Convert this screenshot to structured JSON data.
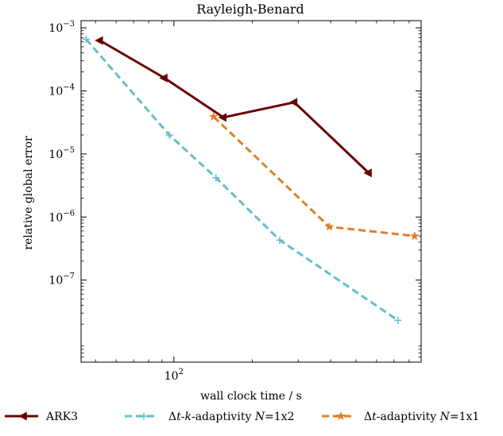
{
  "chart_data": {
    "type": "line",
    "title": "Rayleigh-Benard",
    "xlabel": "wall clock time / s",
    "ylabel": "relative global error",
    "xscale": "log",
    "yscale": "log",
    "xlim": [
      44,
      890
    ],
    "ylim": [
      5e-09,
      0.0013
    ],
    "x_ticks": [
      {
        "value": 100,
        "base": "10",
        "exp": "2"
      }
    ],
    "y_ticks": [
      {
        "value": 0.001,
        "base": "10",
        "exp": "−3"
      },
      {
        "value": 0.0001,
        "base": "10",
        "exp": "−4"
      },
      {
        "value": 1e-05,
        "base": "10",
        "exp": "−5"
      },
      {
        "value": 1e-06,
        "base": "10",
        "exp": "−6"
      },
      {
        "value": 1e-07,
        "base": "10",
        "exp": "−7"
      }
    ],
    "grid": false,
    "legend_position": "bottom",
    "series": [
      {
        "name": "ARK3",
        "color": "#6b0000",
        "marker": "triangle-left",
        "dash": "solid",
        "x": [
          52,
          92,
          155,
          290,
          560
        ],
        "y": [
          0.00063,
          0.00016,
          3.8e-05,
          6.6e-05,
          5e-06
        ]
      },
      {
        "name_parts": [
          "Δ",
          "t",
          "-",
          "k",
          "-adaptivity ",
          "N",
          "=1x2"
        ],
        "color": "#63c0c7",
        "marker": "plus",
        "dash": "dashed",
        "x": [
          46,
          96,
          145,
          255,
          725
        ],
        "y": [
          0.00066,
          2e-05,
          4.2e-06,
          4.3e-07,
          2.3e-08
        ]
      },
      {
        "name_parts": [
          "Δ",
          "t",
          "-adaptivity ",
          "N",
          "=1x1"
        ],
        "color": "#e08027",
        "marker": "star",
        "dash": "dashed",
        "x": [
          142,
          395,
          840
        ],
        "y": [
          3.9e-05,
          7e-07,
          5e-07
        ]
      }
    ]
  }
}
